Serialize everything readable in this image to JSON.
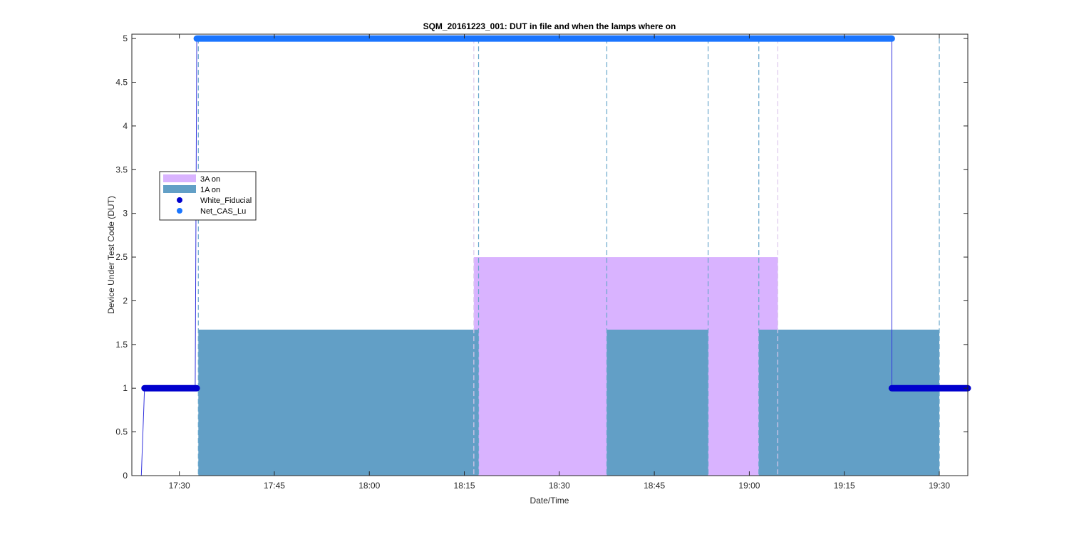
{
  "chart_data": {
    "type": "area",
    "title": "SQM_20161223_001: DUT in file and when the lamps where on",
    "xlabel": "Date/Time",
    "ylabel": "Device Under Test Code (DUT)",
    "xlim": [
      "17:22:30",
      "19:34:30"
    ],
    "ylim": [
      0,
      5.05
    ],
    "x_ticks": [
      "17:30",
      "17:45",
      "18:00",
      "18:15",
      "18:30",
      "18:45",
      "19:00",
      "19:15",
      "19:30"
    ],
    "y_ticks": [
      "0",
      "0.5",
      "1",
      "1.5",
      "2",
      "2.5",
      "3",
      "3.5",
      "4",
      "4.5",
      "5"
    ],
    "grid": false,
    "legend_position": "left",
    "colors": {
      "3A on": "#d9b3ff",
      "1A on": "#629fc6",
      "White_Fiducial": "#0000cd",
      "Net_CAS_Lu": "#1a75ff",
      "line": "#3333dd",
      "vline_3A": "#dcc8ec",
      "vline_1A": "#6aa8cc"
    },
    "series": [
      {
        "name": "3A on",
        "kind": "bar-region",
        "level": 2.5,
        "intervals": [
          [
            "18:16:30",
            "19:04:30"
          ]
        ]
      },
      {
        "name": "1A on",
        "kind": "bar-region",
        "level": 1.67,
        "intervals": [
          [
            "17:33:00",
            "18:17:15"
          ],
          [
            "18:37:30",
            "18:53:30"
          ],
          [
            "19:01:30",
            "19:30:00"
          ]
        ]
      },
      {
        "name": "White_Fiducial",
        "kind": "scatter-run",
        "y": 1,
        "runs": [
          [
            "17:24:30",
            "17:32:45"
          ],
          [
            "19:22:30",
            "19:34:30"
          ]
        ]
      },
      {
        "name": "Net_CAS_Lu",
        "kind": "scatter-run",
        "y": 5,
        "runs": [
          [
            "17:32:45",
            "19:22:30"
          ]
        ]
      }
    ],
    "line": [
      [
        "17:24:00",
        0
      ],
      [
        "17:24:30",
        1
      ],
      [
        "17:32:30",
        1
      ],
      [
        "17:32:45",
        5
      ],
      [
        "19:22:30",
        5
      ],
      [
        "19:22:30",
        1
      ],
      [
        "19:34:30",
        1
      ]
    ],
    "vlines": [
      {
        "t": "17:33:00",
        "group": "1A"
      },
      {
        "t": "18:16:30",
        "group": "3A"
      },
      {
        "t": "18:17:15",
        "group": "1A"
      },
      {
        "t": "18:37:30",
        "group": "1A"
      },
      {
        "t": "18:53:30",
        "group": "1A"
      },
      {
        "t": "19:01:30",
        "group": "1A"
      },
      {
        "t": "19:04:30",
        "group": "3A"
      },
      {
        "t": "19:30:00",
        "group": "1A"
      }
    ]
  }
}
